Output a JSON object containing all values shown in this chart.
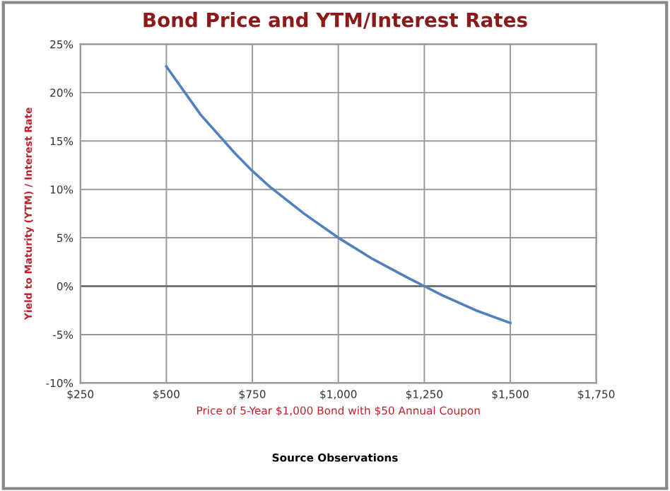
{
  "chart_data": {
    "type": "line",
    "title": "Bond Price and YTM/Interest Rates",
    "xlabel": "Price of 5-Year $1,000 Bond with $50 Annual Coupon",
    "ylabel": "Yield to Maturity (YTM) / Interest Rate",
    "annotations": [
      "Source Observations"
    ],
    "series": [
      {
        "color": "#4f81bd",
        "x": [
          500,
          600,
          700,
          750,
          800,
          900,
          1000,
          1100,
          1200,
          1250,
          1300,
          1400,
          1500
        ],
        "values": [
          22.7,
          17.7,
          13.7,
          11.9,
          10.3,
          7.5,
          5.0,
          2.8,
          0.9,
          0.0,
          -0.9,
          -2.5,
          -3.8
        ]
      }
    ],
    "xlim": [
      250,
      1750
    ],
    "xticks": [
      {
        "value": 250,
        "label": "$250"
      },
      {
        "value": 500,
        "label": "$500"
      },
      {
        "value": 750,
        "label": "$750"
      },
      {
        "value": 1000,
        "label": "$1,000"
      },
      {
        "value": 1250,
        "label": "$1,250"
      },
      {
        "value": 1500,
        "label": "$1,500"
      },
      {
        "value": 1750,
        "label": "$1,750"
      }
    ],
    "ylim": [
      -10,
      25
    ],
    "yticks": [
      {
        "value": -10,
        "label": "-10%"
      },
      {
        "value": -5,
        "label": "-5%"
      },
      {
        "value": 0,
        "label": "0%"
      },
      {
        "value": 5,
        "label": "5%"
      },
      {
        "value": 10,
        "label": "10%"
      },
      {
        "value": 15,
        "label": "15%"
      },
      {
        "value": 20,
        "label": "20%"
      },
      {
        "value": 25,
        "label": "25%"
      }
    ],
    "grid": true,
    "marker": "none",
    "line_style": "solid",
    "legend": false
  }
}
